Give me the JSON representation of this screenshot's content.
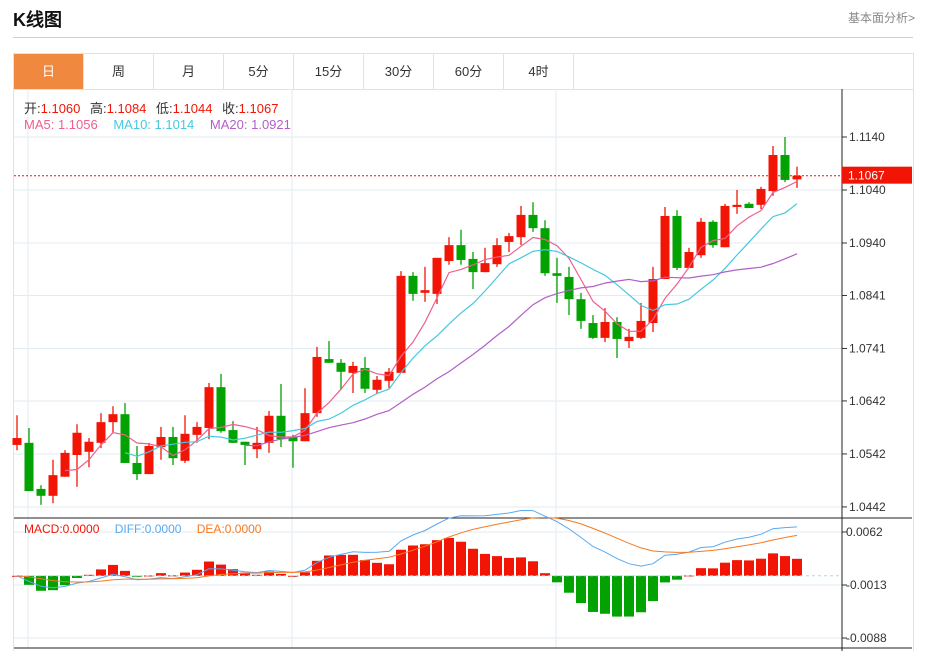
{
  "header": {
    "title": "K线图",
    "link": "基本面分析>"
  },
  "tabs": [
    {
      "label": "日",
      "active": true
    },
    {
      "label": "周"
    },
    {
      "label": "月"
    },
    {
      "label": "5分"
    },
    {
      "label": "15分"
    },
    {
      "label": "30分"
    },
    {
      "label": "60分"
    },
    {
      "label": "4时"
    }
  ],
  "ohlc_legend": {
    "open_label": "开:",
    "open": "1.1060",
    "high_label": "高:",
    "high": "1.1084",
    "low_label": "低:",
    "low": "1.1044",
    "close_label": "收:",
    "close": "1.1067"
  },
  "ma_legend": {
    "ma5": "MA5: 1.1056",
    "ma10": "MA10: 1.1014",
    "ma20": "MA20: 1.0921"
  },
  "macd_legend": {
    "macd": "MACD:0.0000",
    "diff": "DIFF:0.0000",
    "dea": "DEA:0.0000"
  },
  "current_price": "1.1067",
  "colors": {
    "up": "#f21505",
    "down": "#03a203",
    "ma5": "#ee5f8d",
    "ma10": "#45c8e0",
    "ma20": "#b35fc9",
    "diff": "#5aa8f0",
    "dea": "#f57a22",
    "accent": "#f0883f"
  },
  "chart_data": {
    "type": "candlestick",
    "price_axis": {
      "ticks": [
        "1.1140",
        "1.1040",
        "1.0940",
        "1.0841",
        "1.0741",
        "1.0642",
        "1.0542",
        "1.0442"
      ],
      "range": [
        1.0435,
        1.122
      ]
    },
    "macd_axis": {
      "ticks": [
        "0.0062",
        "-0.0013",
        "-0.0088"
      ],
      "range": [
        -0.0098,
        0.0075
      ]
    },
    "candles": [
      [
        1.0559,
        1.0615,
        1.0549,
        1.0572
      ],
      [
        1.0563,
        1.0591,
        1.0472,
        1.0472
      ],
      [
        1.0476,
        1.0483,
        1.0446,
        1.0463
      ],
      [
        1.0463,
        1.0531,
        1.0449,
        1.0502
      ],
      [
        1.0499,
        1.0549,
        1.0499,
        1.0544
      ],
      [
        1.054,
        1.0598,
        1.048,
        1.0582
      ],
      [
        1.0546,
        1.0572,
        1.0517,
        1.0565
      ],
      [
        1.0563,
        1.0619,
        1.0553,
        1.0602
      ],
      [
        1.0602,
        1.0632,
        1.0582,
        1.0617
      ],
      [
        1.0617,
        1.0638,
        1.0525,
        1.0525
      ],
      [
        1.0525,
        1.0557,
        1.0493,
        1.0504
      ],
      [
        1.0504,
        1.0563,
        1.0504,
        1.0557
      ],
      [
        1.0555,
        1.0593,
        1.0531,
        1.0574
      ],
      [
        1.0574,
        1.0593,
        1.0521,
        1.0534
      ],
      [
        1.0529,
        1.0615,
        1.0525,
        1.058
      ],
      [
        1.0578,
        1.0602,
        1.0563,
        1.0593
      ],
      [
        1.0591,
        1.0676,
        1.057,
        1.0668
      ],
      [
        1.0668,
        1.0693,
        1.0582,
        1.0585
      ],
      [
        1.0587,
        1.0604,
        1.0563,
        1.0563
      ],
      [
        1.0565,
        1.0565,
        1.0521,
        1.0559
      ],
      [
        1.0551,
        1.0593,
        1.0534,
        1.0563
      ],
      [
        1.0563,
        1.0623,
        1.0544,
        1.0614
      ],
      [
        1.0614,
        1.0674,
        1.0555,
        1.057
      ],
      [
        1.0574,
        1.0578,
        1.0516,
        1.0566
      ],
      [
        1.0566,
        1.0666,
        1.0566,
        1.0619
      ],
      [
        1.0619,
        1.0744,
        1.0612,
        1.0725
      ],
      [
        1.0721,
        1.0755,
        1.0714,
        1.0714
      ],
      [
        1.0714,
        1.0721,
        1.0663,
        1.0697
      ],
      [
        1.0695,
        1.0716,
        1.0657,
        1.0708
      ],
      [
        1.0704,
        1.0725,
        1.0657,
        1.0665
      ],
      [
        1.0663,
        1.0689,
        1.0655,
        1.0682
      ],
      [
        1.068,
        1.0704,
        1.0666,
        1.0697
      ],
      [
        1.0695,
        1.0887,
        1.0695,
        1.0878
      ],
      [
        1.0878,
        1.0885,
        1.0831,
        1.0844
      ],
      [
        1.0846,
        1.0895,
        1.0829,
        1.0851
      ],
      [
        1.0844,
        1.0912,
        1.0825,
        1.0912
      ],
      [
        1.0906,
        1.0951,
        1.0899,
        1.0936
      ],
      [
        1.0936,
        1.0965,
        1.0899,
        1.0908
      ],
      [
        1.091,
        1.0923,
        1.0853,
        1.0885
      ],
      [
        1.0885,
        1.0931,
        1.0885,
        1.0902
      ],
      [
        1.09,
        1.0949,
        1.0895,
        1.0936
      ],
      [
        1.0942,
        1.0959,
        1.0923,
        1.0953
      ],
      [
        1.0951,
        1.101,
        1.0936,
        1.0993
      ],
      [
        1.0993,
        1.1017,
        1.0961,
        1.0968
      ],
      [
        1.0968,
        1.0983,
        1.0878,
        1.0883
      ],
      [
        1.0883,
        1.0912,
        1.0827,
        1.0878
      ],
      [
        1.0876,
        1.0895,
        1.0804,
        1.0834
      ],
      [
        1.0834,
        1.0846,
        1.0778,
        1.0793
      ],
      [
        1.0789,
        1.0804,
        1.0759,
        1.0761
      ],
      [
        1.0761,
        1.0817,
        1.0753,
        1.0791
      ],
      [
        1.0791,
        1.08,
        1.0723,
        1.0759
      ],
      [
        1.0755,
        1.0778,
        1.0742,
        1.0763
      ],
      [
        1.0761,
        1.0827,
        1.0759,
        1.0793
      ],
      [
        1.0789,
        1.0895,
        1.0772,
        1.0872
      ],
      [
        1.0872,
        1.1008,
        1.0872,
        1.0991
      ],
      [
        1.0991,
        1.1002,
        1.0889,
        1.0893
      ],
      [
        1.0893,
        1.0931,
        1.0893,
        1.0923
      ],
      [
        1.0917,
        1.0987,
        1.0912,
        1.098
      ],
      [
        1.098,
        1.0983,
        1.0931,
        1.0936
      ],
      [
        1.0932,
        1.1014,
        1.0932,
        1.101
      ],
      [
        1.1008,
        1.104,
        1.0995,
        1.1012
      ],
      [
        1.1014,
        1.1017,
        1.1006,
        1.1006
      ],
      [
        1.1012,
        1.1046,
        1.1004,
        1.1042
      ],
      [
        1.1038,
        1.1123,
        1.1029,
        1.1106
      ],
      [
        1.1106,
        1.114,
        1.1055,
        1.1059
      ],
      [
        1.106,
        1.1084,
        1.1044,
        1.1067
      ]
    ]
  }
}
